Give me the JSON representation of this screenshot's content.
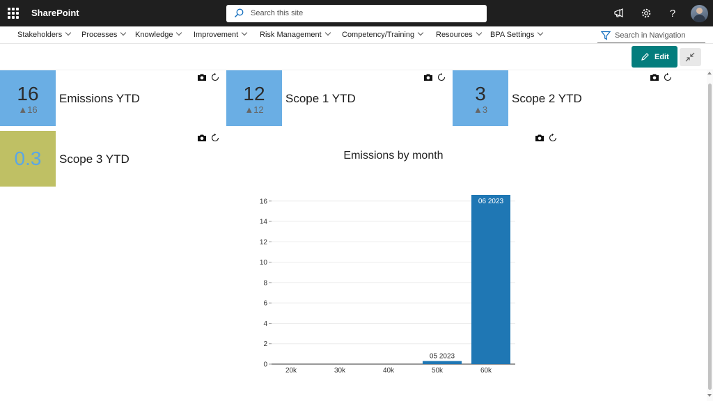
{
  "suitebar": {
    "brand": "SharePoint",
    "search_placeholder": "Search this site",
    "icons": [
      "app-launcher-icon",
      "megaphone-icon",
      "gear-icon",
      "help-icon",
      "avatar"
    ]
  },
  "nav": {
    "items": [
      {
        "label": "Stakeholders"
      },
      {
        "label": "Processes"
      },
      {
        "label": "Knowledge"
      },
      {
        "label": "Improvement"
      },
      {
        "label": "Risk Management"
      },
      {
        "label": "Competency/Training"
      },
      {
        "label": "Resources"
      },
      {
        "label": "BPA Settings"
      }
    ],
    "search_placeholder": "Search in Navigation"
  },
  "toolbar": {
    "edit_label": "Edit"
  },
  "kpis": [
    {
      "value": "16",
      "delta": "16",
      "label": "Emissions YTD",
      "color": "#6aaee4"
    },
    {
      "value": "12",
      "delta": "12",
      "label": "Scope 1 YTD",
      "color": "#6aaee4"
    },
    {
      "value": "3",
      "delta": "3",
      "label": "Scope 2 YTD",
      "color": "#6aaee4"
    },
    {
      "value": "0.3",
      "label": "Scope 3 YTD",
      "color": "#bfc064",
      "value_color": "#5aa6e6"
    }
  ],
  "chart_data": {
    "type": "bar",
    "title": "Emissions by month",
    "x_ticks": [
      "20k",
      "30k",
      "40k",
      "50k",
      "60k"
    ],
    "y_ticks": [
      0,
      2,
      4,
      6,
      8,
      10,
      12,
      14,
      16
    ],
    "ylim": [
      0,
      16.6
    ],
    "bars": [
      {
        "label": "05 2023",
        "value": 0.3
      },
      {
        "label": "06 2023",
        "value": 16.6
      }
    ],
    "bar_color": "#1f77b4",
    "grid": true,
    "legend": "none"
  }
}
